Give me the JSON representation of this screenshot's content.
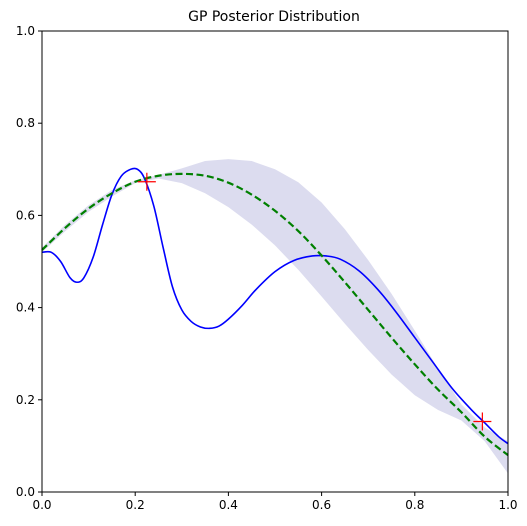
{
  "chart_data": {
    "type": "line",
    "title": "GP Posterior Distribution",
    "xlabel": "",
    "ylabel": "",
    "xlim": [
      0.0,
      1.0
    ],
    "ylim": [
      0.0,
      1.0
    ],
    "x_ticks": [
      "0.0",
      "0.2",
      "0.4",
      "0.6",
      "0.8",
      "1.0"
    ],
    "y_ticks": [
      "0.0",
      "0.2",
      "0.4",
      "0.6",
      "0.8",
      "1.0"
    ],
    "grid": false,
    "legend": "none",
    "series": [
      {
        "style": "solid",
        "color": "#0000ff",
        "points": [
          [
            0.0,
            0.52
          ],
          [
            0.02,
            0.52
          ],
          [
            0.04,
            0.5
          ],
          [
            0.06,
            0.465
          ],
          [
            0.075,
            0.455
          ],
          [
            0.09,
            0.465
          ],
          [
            0.11,
            0.51
          ],
          [
            0.13,
            0.58
          ],
          [
            0.15,
            0.645
          ],
          [
            0.17,
            0.685
          ],
          [
            0.19,
            0.7
          ],
          [
            0.205,
            0.7
          ],
          [
            0.22,
            0.68
          ],
          [
            0.24,
            0.62
          ],
          [
            0.26,
            0.53
          ],
          [
            0.28,
            0.445
          ],
          [
            0.3,
            0.395
          ],
          [
            0.32,
            0.37
          ],
          [
            0.34,
            0.358
          ],
          [
            0.36,
            0.355
          ],
          [
            0.38,
            0.36
          ],
          [
            0.4,
            0.375
          ],
          [
            0.43,
            0.405
          ],
          [
            0.46,
            0.44
          ],
          [
            0.5,
            0.478
          ],
          [
            0.54,
            0.502
          ],
          [
            0.58,
            0.512
          ],
          [
            0.61,
            0.512
          ],
          [
            0.64,
            0.505
          ],
          [
            0.68,
            0.48
          ],
          [
            0.72,
            0.44
          ],
          [
            0.76,
            0.39
          ],
          [
            0.8,
            0.335
          ],
          [
            0.84,
            0.28
          ],
          [
            0.88,
            0.225
          ],
          [
            0.92,
            0.18
          ],
          [
            0.95,
            0.15
          ],
          [
            0.98,
            0.12
          ],
          [
            1.0,
            0.105
          ]
        ]
      },
      {
        "style": "dashed",
        "color": "#008000",
        "points": [
          [
            0.0,
            0.525
          ],
          [
            0.05,
            0.573
          ],
          [
            0.1,
            0.615
          ],
          [
            0.15,
            0.648
          ],
          [
            0.2,
            0.673
          ],
          [
            0.25,
            0.686
          ],
          [
            0.3,
            0.69
          ],
          [
            0.35,
            0.686
          ],
          [
            0.4,
            0.671
          ],
          [
            0.45,
            0.645
          ],
          [
            0.5,
            0.61
          ],
          [
            0.55,
            0.566
          ],
          [
            0.6,
            0.513
          ],
          [
            0.65,
            0.455
          ],
          [
            0.7,
            0.395
          ],
          [
            0.75,
            0.335
          ],
          [
            0.8,
            0.277
          ],
          [
            0.85,
            0.222
          ],
          [
            0.9,
            0.173
          ],
          [
            0.95,
            0.12
          ],
          [
            1.0,
            0.08
          ]
        ]
      }
    ],
    "band": {
      "color": "#dcdcef",
      "x": [
        0.0,
        0.05,
        0.1,
        0.15,
        0.2,
        0.25,
        0.3,
        0.35,
        0.4,
        0.45,
        0.5,
        0.55,
        0.6,
        0.65,
        0.7,
        0.75,
        0.8,
        0.85,
        0.9,
        0.95,
        1.0
      ],
      "upper": [
        0.53,
        0.58,
        0.622,
        0.655,
        0.676,
        0.688,
        0.702,
        0.718,
        0.722,
        0.718,
        0.7,
        0.672,
        0.628,
        0.57,
        0.503,
        0.43,
        0.35,
        0.268,
        0.19,
        0.14,
        0.11
      ],
      "lower": [
        0.52,
        0.566,
        0.608,
        0.641,
        0.67,
        0.68,
        0.67,
        0.648,
        0.618,
        0.58,
        0.535,
        0.482,
        0.424,
        0.365,
        0.308,
        0.255,
        0.21,
        0.178,
        0.155,
        0.11,
        0.04
      ]
    },
    "observations": {
      "marker": "+",
      "color": "#ff0000",
      "points": [
        [
          0.225,
          0.673
        ],
        [
          0.945,
          0.153
        ]
      ]
    }
  }
}
